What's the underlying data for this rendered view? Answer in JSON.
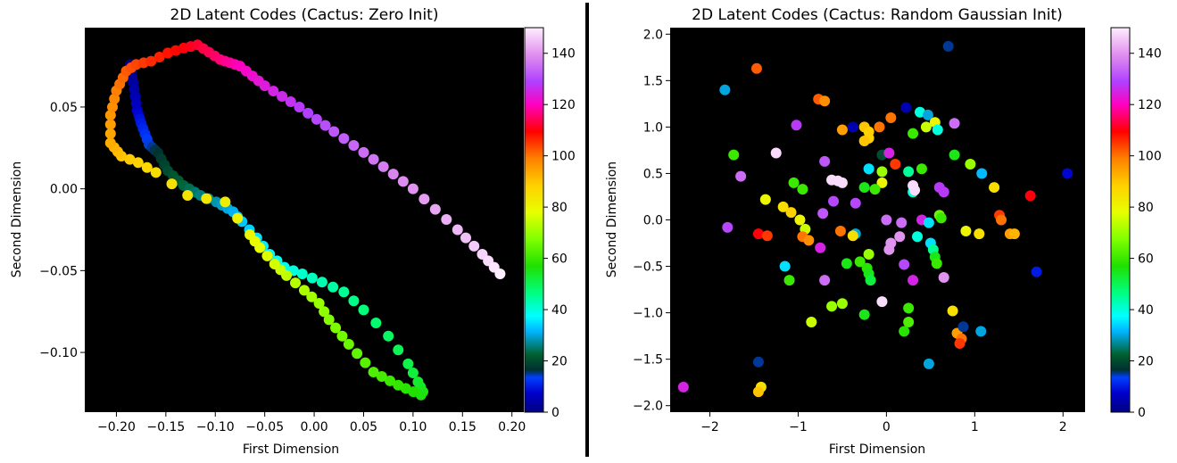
{
  "chart_data": [
    {
      "type": "scatter",
      "title": "2D Latent Codes (Cactus: Zero Init)",
      "xlabel": "First Dimension",
      "ylabel": "Second Dimension",
      "xlim": [
        -0.232,
        0.212
      ],
      "ylim": [
        -0.1365,
        0.0985
      ],
      "xticks": [
        -0.2,
        -0.15,
        -0.1,
        -0.05,
        0.0,
        0.05,
        0.1,
        0.15,
        0.2
      ],
      "xtick_labels": [
        "−0.20",
        "−0.15",
        "−0.10",
        "−0.05",
        "0.00",
        "0.05",
        "0.10",
        "0.15",
        "0.20"
      ],
      "yticks": [
        0.05,
        0.0,
        -0.05,
        -0.1
      ],
      "ytick_labels": [
        "0.05",
        "0.00",
        "−0.05",
        "−0.10"
      ],
      "background": "#000000",
      "colormap": "gist_ncar",
      "color_range": [
        0,
        150
      ],
      "colorbar_ticks": [
        0,
        20,
        40,
        60,
        80,
        100,
        120,
        140
      ],
      "point_color_note": "points colored by index 0..150",
      "path_anchors": [
        [
          0,
          -0.186,
          0.076
        ],
        [
          3,
          -0.183,
          0.065
        ],
        [
          7,
          -0.179,
          0.048
        ],
        [
          10,
          -0.175,
          0.04
        ],
        [
          14,
          -0.167,
          0.027
        ],
        [
          17,
          -0.158,
          0.022
        ],
        [
          20,
          -0.148,
          0.011
        ],
        [
          23,
          -0.132,
          0.002
        ],
        [
          26,
          -0.115,
          -0.004
        ],
        [
          28,
          -0.099,
          -0.008
        ],
        [
          31,
          -0.082,
          -0.014
        ],
        [
          33,
          -0.073,
          -0.02
        ],
        [
          35,
          -0.058,
          -0.03
        ],
        [
          37,
          -0.045,
          -0.04
        ],
        [
          39,
          -0.03,
          -0.048
        ],
        [
          41,
          -0.012,
          -0.052
        ],
        [
          43,
          0.008,
          -0.057
        ],
        [
          45,
          0.03,
          -0.063
        ],
        [
          47,
          0.05,
          -0.074
        ],
        [
          49,
          0.075,
          -0.09
        ],
        [
          51,
          0.095,
          -0.107
        ],
        [
          53,
          0.105,
          -0.118
        ],
        [
          55,
          0.11,
          -0.124
        ],
        [
          56,
          0.108,
          -0.126
        ],
        [
          59,
          0.085,
          -0.12
        ],
        [
          62,
          0.06,
          -0.112
        ],
        [
          65,
          0.035,
          -0.095
        ],
        [
          68,
          0.015,
          -0.08
        ],
        [
          70,
          0.005,
          -0.07
        ],
        [
          72,
          -0.01,
          -0.062
        ],
        [
          74,
          -0.028,
          -0.053
        ],
        [
          76,
          -0.04,
          -0.046
        ],
        [
          78,
          -0.055,
          -0.036
        ],
        [
          80,
          -0.065,
          -0.028
        ],
        [
          82,
          -0.09,
          -0.008
        ],
        [
          84,
          -0.128,
          -0.004
        ],
        [
          86,
          -0.16,
          0.01
        ],
        [
          88,
          -0.178,
          0.016
        ],
        [
          90,
          -0.195,
          0.02
        ],
        [
          93,
          -0.206,
          0.028
        ],
        [
          96,
          -0.206,
          0.045
        ],
        [
          99,
          -0.2,
          0.06
        ],
        [
          102,
          -0.19,
          0.072
        ],
        [
          104,
          -0.18,
          0.076
        ],
        [
          106,
          -0.165,
          0.078
        ],
        [
          108,
          -0.148,
          0.083
        ],
        [
          110,
          -0.132,
          0.086
        ],
        [
          112,
          -0.118,
          0.088
        ],
        [
          116,
          -0.095,
          0.079
        ],
        [
          120,
          -0.075,
          0.075
        ],
        [
          124,
          -0.05,
          0.063
        ],
        [
          128,
          -0.015,
          0.05
        ],
        [
          132,
          0.02,
          0.035
        ],
        [
          136,
          0.06,
          0.018
        ],
        [
          140,
          0.1,
          0.0
        ],
        [
          144,
          0.145,
          -0.025
        ],
        [
          147,
          0.17,
          -0.04
        ],
        [
          150,
          0.188,
          -0.052
        ]
      ]
    },
    {
      "type": "scatter",
      "title": "2D Latent Codes (Cactus: Random Gaussian Init)",
      "xlabel": "First Dimension",
      "ylabel": "Second Dimension",
      "xlim": [
        -2.45,
        2.25
      ],
      "ylim": [
        -2.07,
        2.07
      ],
      "xticks": [
        -2,
        -1,
        0,
        1,
        2
      ],
      "xtick_labels": [
        "−2",
        "−1",
        "0",
        "1",
        "2"
      ],
      "yticks": [
        2.0,
        1.5,
        1.0,
        0.5,
        0.0,
        -0.5,
        -1.0,
        -1.5,
        -2.0
      ],
      "ytick_labels": [
        "2.0",
        "1.5",
        "1.0",
        "0.5",
        "0.0",
        "−0.5",
        "−1.0",
        "−1.5",
        "−2.0"
      ],
      "background": "#000000",
      "colormap": "gist_ncar",
      "color_range": [
        0,
        150
      ],
      "colorbar_ticks": [
        0,
        20,
        40,
        60,
        80,
        100,
        120,
        140
      ],
      "points": [
        [
          0.7,
          1.87,
          15
        ],
        [
          -1.47,
          1.63,
          102
        ],
        [
          -1.83,
          1.4,
          30
        ],
        [
          -0.77,
          1.3,
          102
        ],
        [
          -0.7,
          1.28,
          97
        ],
        [
          0.05,
          1.1,
          100
        ],
        [
          -0.38,
          1.0,
          5
        ],
        [
          -0.25,
          1.0,
          90
        ],
        [
          -0.5,
          0.97,
          95
        ],
        [
          -0.2,
          0.95,
          88
        ],
        [
          -1.02,
          1.02,
          128
        ],
        [
          0.22,
          1.21,
          5
        ],
        [
          0.38,
          1.16,
          40
        ],
        [
          0.47,
          1.13,
          30
        ],
        [
          0.55,
          1.05,
          80
        ],
        [
          0.45,
          1.0,
          75
        ],
        [
          0.58,
          0.97,
          40
        ],
        [
          0.3,
          0.93,
          60
        ],
        [
          0.77,
          1.04,
          135
        ],
        [
          -0.2,
          0.88,
          88
        ],
        [
          -0.08,
          1.0,
          100
        ],
        [
          -0.25,
          0.85,
          90
        ],
        [
          -1.73,
          0.7,
          60
        ],
        [
          -1.65,
          0.47,
          135
        ],
        [
          -1.25,
          0.72,
          148
        ],
        [
          -0.7,
          0.63,
          132
        ],
        [
          -0.05,
          0.7,
          20
        ],
        [
          0.03,
          0.72,
          125
        ],
        [
          0.77,
          0.7,
          55
        ],
        [
          0.95,
          0.6,
          70
        ],
        [
          1.08,
          0.5,
          32
        ],
        [
          1.22,
          0.35,
          85
        ],
        [
          2.05,
          0.5,
          8
        ],
        [
          0.4,
          0.55,
          60
        ],
        [
          0.25,
          0.52,
          45
        ],
        [
          0.3,
          0.3,
          40
        ],
        [
          -0.2,
          0.55,
          35
        ],
        [
          -0.05,
          0.52,
          70
        ],
        [
          -0.05,
          0.4,
          80
        ],
        [
          -0.25,
          0.35,
          55
        ],
        [
          -0.13,
          0.33,
          60
        ],
        [
          -0.62,
          0.43,
          148
        ],
        [
          -0.55,
          0.42,
          148
        ],
        [
          -0.5,
          0.4,
          148
        ],
        [
          0.3,
          0.37,
          148
        ],
        [
          0.32,
          0.32,
          148
        ],
        [
          0.6,
          0.35,
          128
        ],
        [
          0.65,
          0.3,
          128
        ],
        [
          -1.37,
          0.22,
          80
        ],
        [
          -1.05,
          0.4,
          60
        ],
        [
          -0.95,
          0.33,
          60
        ],
        [
          -0.6,
          0.2,
          130
        ],
        [
          -0.35,
          0.18,
          130
        ],
        [
          0.1,
          0.6,
          105
        ],
        [
          1.63,
          0.26,
          110
        ],
        [
          -1.17,
          0.14,
          85
        ],
        [
          -1.08,
          0.08,
          88
        ],
        [
          -0.98,
          0.0,
          80
        ],
        [
          -0.92,
          -0.1,
          75
        ],
        [
          -0.72,
          0.07,
          132
        ],
        [
          -0.52,
          -0.12,
          100
        ],
        [
          -0.35,
          -0.15,
          30
        ],
        [
          -0.38,
          -0.17,
          85
        ],
        [
          0.0,
          0.0,
          135
        ],
        [
          0.17,
          -0.03,
          135
        ],
        [
          0.4,
          0.0,
          125
        ],
        [
          0.48,
          -0.03,
          35
        ],
        [
          0.6,
          0.05,
          65
        ],
        [
          0.62,
          0.02,
          60
        ],
        [
          1.28,
          0.05,
          105
        ],
        [
          1.3,
          0.0,
          100
        ],
        [
          1.4,
          -0.15,
          95
        ],
        [
          1.45,
          -0.15,
          92
        ],
        [
          0.9,
          -0.12,
          80
        ],
        [
          1.05,
          -0.15,
          85
        ],
        [
          -1.8,
          -0.08,
          130
        ],
        [
          -1.45,
          -0.15,
          110
        ],
        [
          -1.35,
          -0.17,
          105
        ],
        [
          -0.95,
          -0.18,
          100
        ],
        [
          -0.88,
          -0.22,
          97
        ],
        [
          0.15,
          -0.18,
          140
        ],
        [
          0.35,
          -0.18,
          40
        ],
        [
          0.5,
          -0.25,
          35
        ],
        [
          0.53,
          -0.32,
          45
        ],
        [
          0.55,
          -0.4,
          55
        ],
        [
          0.57,
          -0.47,
          60
        ],
        [
          0.05,
          -0.25,
          140
        ],
        [
          0.03,
          -0.32,
          140
        ],
        [
          -0.2,
          -0.37,
          70
        ],
        [
          -0.3,
          -0.45,
          60
        ],
        [
          -0.45,
          -0.47,
          55
        ],
        [
          -0.75,
          -0.3,
          125
        ],
        [
          -0.7,
          -0.65,
          135
        ],
        [
          -0.22,
          -0.52,
          58
        ],
        [
          -0.2,
          -0.58,
          55
        ],
        [
          -0.18,
          -0.65,
          52
        ],
        [
          0.2,
          -0.48,
          130
        ],
        [
          0.3,
          -0.65,
          125
        ],
        [
          0.65,
          -0.62,
          140
        ],
        [
          -1.15,
          -0.5,
          35
        ],
        [
          -1.1,
          -0.65,
          60
        ],
        [
          -0.62,
          -0.93,
          70
        ],
        [
          -0.5,
          -0.9,
          70
        ],
        [
          -0.25,
          -1.02,
          55
        ],
        [
          -0.05,
          -0.88,
          148
        ],
        [
          0.25,
          -0.95,
          60
        ],
        [
          0.25,
          -1.1,
          62
        ],
        [
          0.2,
          -1.2,
          58
        ],
        [
          -0.85,
          -1.1,
          75
        ],
        [
          0.75,
          -0.98,
          85
        ],
        [
          1.7,
          -0.56,
          10
        ],
        [
          0.8,
          -1.22,
          95
        ],
        [
          0.85,
          -1.28,
          100
        ],
        [
          0.83,
          -1.33,
          105
        ],
        [
          1.07,
          -1.2,
          30
        ],
        [
          0.87,
          -1.15,
          15
        ],
        [
          -1.45,
          -1.53,
          15
        ],
        [
          -1.42,
          -1.8,
          85
        ],
        [
          -1.45,
          -1.85,
          90
        ],
        [
          0.48,
          -1.55,
          30
        ],
        [
          -2.3,
          -1.8,
          125
        ]
      ]
    }
  ]
}
